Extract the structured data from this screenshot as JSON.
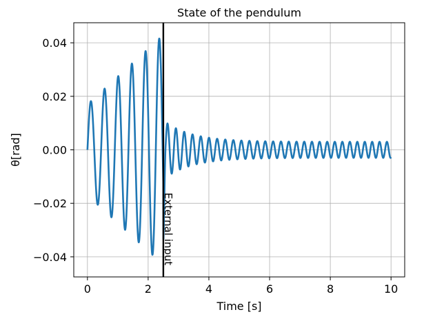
{
  "chart_data": {
    "type": "line",
    "title": "State of the pendulum",
    "xlabel": "Time [s]",
    "ylabel": "θ[rad]",
    "xlim": [
      -0.45,
      10.45
    ],
    "ylim": [
      -0.0475,
      0.0475
    ],
    "x_ticks": [
      0,
      2,
      4,
      6,
      8,
      10
    ],
    "x_tick_labels": [
      "0",
      "2",
      "4",
      "6",
      "8",
      "10"
    ],
    "y_ticks": [
      -0.04,
      -0.02,
      0.0,
      0.02,
      0.04
    ],
    "y_tick_labels": [
      "−0.04",
      "−0.02",
      "0.00",
      "0.02",
      "0.04"
    ],
    "grid": true,
    "series": [
      {
        "color": "#1f77b4",
        "dt": 0.005,
        "t_start": 0,
        "t_end": 10,
        "phase1": {
          "t_end": 2.5,
          "frequency_hz": 2.22,
          "amplitude_start": 0.017,
          "amplitude_end": 0.043
        },
        "phase2": {
          "t_start": 2.5,
          "amplitude_at_input": 0.035,
          "amplitude_after_input": 0.011,
          "amplitude_final": 0.003,
          "decay_rate": 1.1,
          "frequency_start_hz": 3.6,
          "frequency_end_hz": 4.15
        }
      }
    ],
    "annotations": [
      {
        "type": "vline",
        "x": 2.5,
        "color": "#000000"
      },
      {
        "type": "text",
        "x": 2.55,
        "y": -0.016,
        "text": "External input",
        "rotation": 90
      }
    ]
  }
}
